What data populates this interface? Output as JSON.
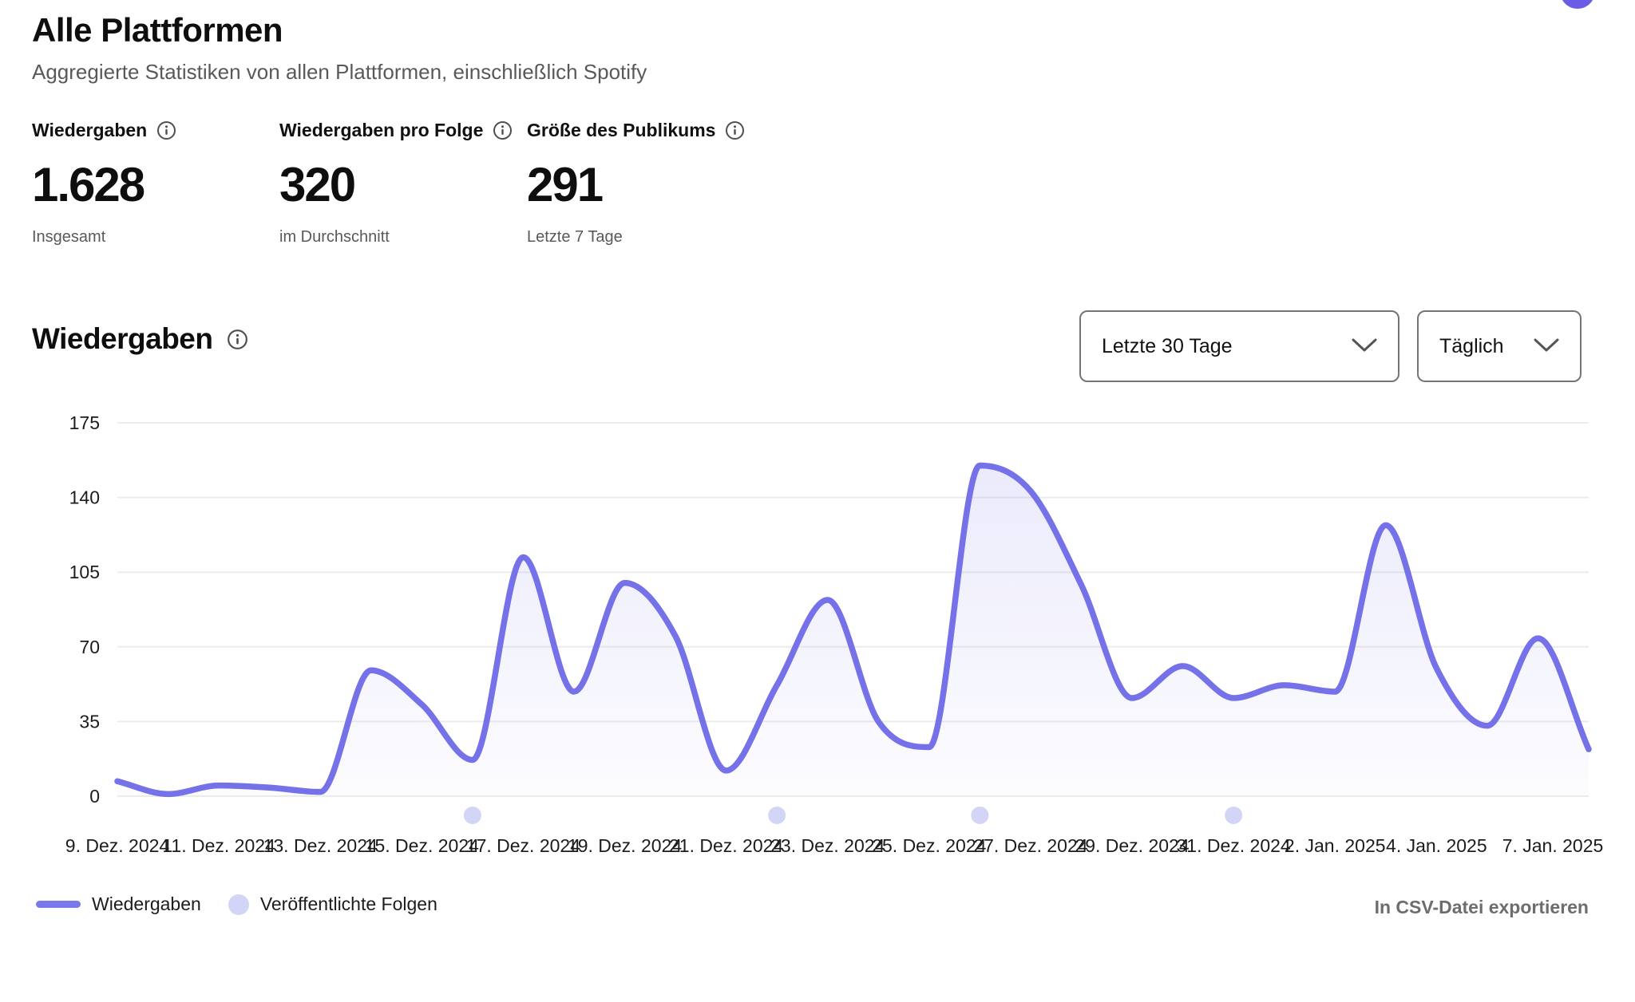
{
  "page": {
    "title": "Alle Plattformen",
    "subtitle": "Aggregierte Statistiken von allen Plattformen, einschließlich Spotify"
  },
  "stats": [
    {
      "label": "Wiedergaben",
      "value": "1.628",
      "sublabel": "Insgesamt"
    },
    {
      "label": "Wiedergaben pro Folge",
      "value": "320",
      "sublabel": "im Durchschnitt"
    },
    {
      "label": "Größe des Publikums",
      "value": "291",
      "sublabel": "Letzte 7 Tage"
    }
  ],
  "chart_section": {
    "title": "Wiedergaben",
    "range_dropdown_value": "Letzte 30 Tage",
    "interval_dropdown_value": "Täglich",
    "export_label": "In CSV-Datei exportieren"
  },
  "legend": {
    "line_label": "Wiedergaben",
    "dot_label": "Veröffentlichte Folgen"
  },
  "chart_data": {
    "type": "area",
    "title": "Wiedergaben",
    "x_dates": [
      "9. Dez. 2024",
      "10. Dez. 2024",
      "11. Dez. 2024",
      "12. Dez. 2024",
      "13. Dez. 2024",
      "14. Dez. 2024",
      "15. Dez. 2024",
      "16. Dez. 2024",
      "17. Dez. 2024",
      "18. Dez. 2024",
      "19. Dez. 2024",
      "20. Dez. 2024",
      "21. Dez. 2024",
      "22. Dez. 2024",
      "23. Dez. 2024",
      "24. Dez. 2024",
      "25. Dez. 2024",
      "26. Dez. 2024",
      "27. Dez. 2024",
      "28. Dez. 2024",
      "29. Dez. 2024",
      "30. Dez. 2024",
      "31. Dez. 2024",
      "1. Jan. 2025",
      "2. Jan. 2025",
      "3. Jan. 2025",
      "4. Jan. 2025",
      "5. Jan. 2025",
      "6. Jan. 2025",
      "7. Jan. 2025"
    ],
    "series": [
      {
        "name": "Wiedergaben",
        "values": [
          7,
          1,
          5,
          4,
          2,
          59,
          43,
          17,
          112,
          49,
          100,
          75,
          12,
          52,
          92,
          35,
          23,
          155,
          143,
          99,
          46,
          61,
          46,
          52,
          49,
          127,
          60,
          33,
          74,
          22
        ]
      }
    ],
    "episode_markers": {
      "name": "Veröffentlichte Folgen",
      "indices": [
        7,
        13,
        17,
        22
      ],
      "dates": [
        "16. Dez. 2024",
        "22. Dez. 2024",
        "26. Dez. 2024",
        "31. Dez. 2024"
      ]
    },
    "ylim": [
      0,
      175
    ],
    "yticks": [
      0,
      35,
      70,
      105,
      140,
      175
    ],
    "xtick_indices": [
      0,
      2,
      4,
      6,
      8,
      10,
      12,
      14,
      16,
      18,
      20,
      22,
      24,
      26,
      29
    ],
    "xtick_labels": [
      "9. Dez. 2024",
      "11. Dez. 2024",
      "13. Dez. 2024",
      "15. Dez. 2024",
      "17. Dez. 2024",
      "19. Dez. 2024",
      "21. Dez. 2024",
      "23. Dez. 2024",
      "25. Dez. 2024",
      "27. Dez. 2024",
      "29. Dez. 2024",
      "31. Dez. 2024",
      "2. Jan. 2025",
      "4. Jan. 2025",
      "7. Jan. 2025"
    ],
    "grid": true,
    "legend_position": "bottom-left"
  },
  "colors": {
    "line": "#7571E8",
    "marker": "#D2D5F5",
    "gridline": "#ECECEC",
    "axis_text": "#1c1c1c",
    "corner_badge": "#6B5CE8"
  }
}
